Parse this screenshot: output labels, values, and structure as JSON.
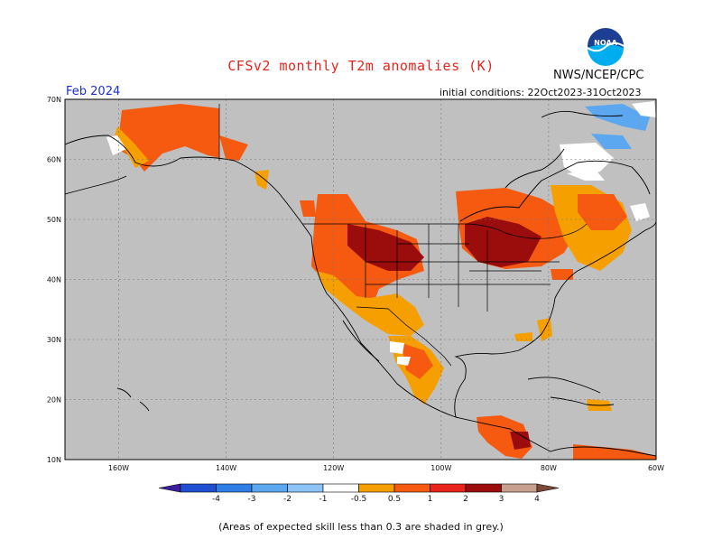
{
  "header": {
    "title": "CFSv2 monthly T2m anomalies (K)",
    "agency": "NWS/NCEP/CPC",
    "logo_text": "NOAA",
    "month": "Feb 2024",
    "initial_conditions": "initial conditions: 22Oct2023-31Oct2023"
  },
  "map": {
    "lat_labels": [
      "70N",
      "60N",
      "50N",
      "40N",
      "30N",
      "20N",
      "10N"
    ],
    "lon_labels": [
      "160W",
      "140W",
      "120W",
      "100W",
      "80W",
      "60W"
    ],
    "lon_range": [
      -170,
      -60
    ],
    "lat_range": [
      10,
      70
    ],
    "background_color": "#c0c0c0"
  },
  "colorbar": {
    "tick_labels": [
      "-4",
      "-3",
      "-2",
      "-1",
      "-0.5",
      "0.5",
      "1",
      "2",
      "3",
      "4"
    ],
    "colors": [
      "#3a1f9e",
      "#1f4fd0",
      "#2f7ee6",
      "#5ca8f0",
      "#8cc4f7",
      "#ffffff",
      "#f5a000",
      "#f55a10",
      "#e8241c",
      "#9b0d0d",
      "#c8a090",
      "#7a4a3a"
    ]
  },
  "footnote": "(Areas of expected skill less than 0.3 are shaded in grey.)"
}
